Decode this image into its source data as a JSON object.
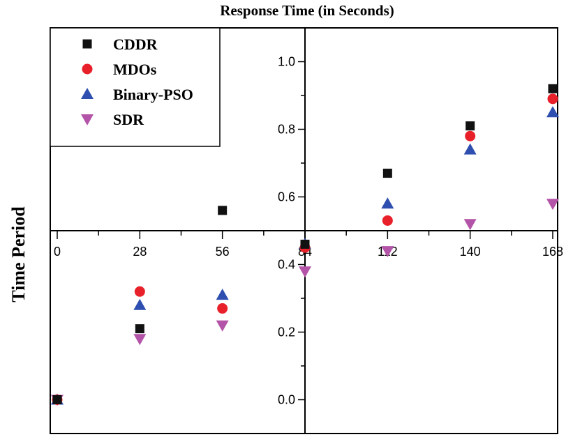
{
  "chart_data": {
    "type": "scatter",
    "title": "Response Time (in Seconds)",
    "xlabel": "",
    "ylabel": "Time Period",
    "xlim": [
      0,
      168
    ],
    "ylim": [
      -0.1,
      1.1
    ],
    "xticks": [
      0,
      28,
      56,
      84,
      112,
      140,
      168
    ],
    "xtick_labels": [
      "0",
      "28",
      "56",
      "84",
      "112",
      "140",
      "168"
    ],
    "yticks": [
      0.0,
      0.2,
      0.4,
      0.6,
      0.8,
      1.0
    ],
    "ytick_labels": [
      "0.0",
      "0.2",
      "0.4",
      "0.6",
      "0.8",
      "1.0"
    ],
    "x_axis_at_y": 0.5,
    "y_axis_at_x": 84,
    "legend_position": "top-left",
    "series": [
      {
        "name": "CDDR",
        "marker": "square",
        "color": "#111111",
        "x": [
          0,
          28,
          56,
          84,
          112,
          140,
          168
        ],
        "y": [
          0.0,
          0.21,
          0.56,
          0.46,
          0.67,
          0.81,
          0.92
        ]
      },
      {
        "name": "MDOs",
        "marker": "circle",
        "color": "#e8202a",
        "x": [
          0,
          28,
          56,
          84,
          112,
          140,
          168
        ],
        "y": [
          0.0,
          0.32,
          0.27,
          0.45,
          0.53,
          0.78,
          0.89
        ]
      },
      {
        "name": "Binary-PSO",
        "marker": "triangle-up",
        "color": "#2e4fb0",
        "x": [
          0,
          28,
          56,
          84,
          112,
          140,
          168
        ],
        "y": [
          0.0,
          0.28,
          0.31,
          0.46,
          0.58,
          0.74,
          0.85
        ]
      },
      {
        "name": "SDR",
        "marker": "triangle-down",
        "color": "#b454a8",
        "x": [
          0,
          28,
          56,
          84,
          112,
          140,
          168
        ],
        "y": [
          0.0,
          0.18,
          0.22,
          0.38,
          0.44,
          0.52,
          0.58
        ]
      }
    ]
  }
}
